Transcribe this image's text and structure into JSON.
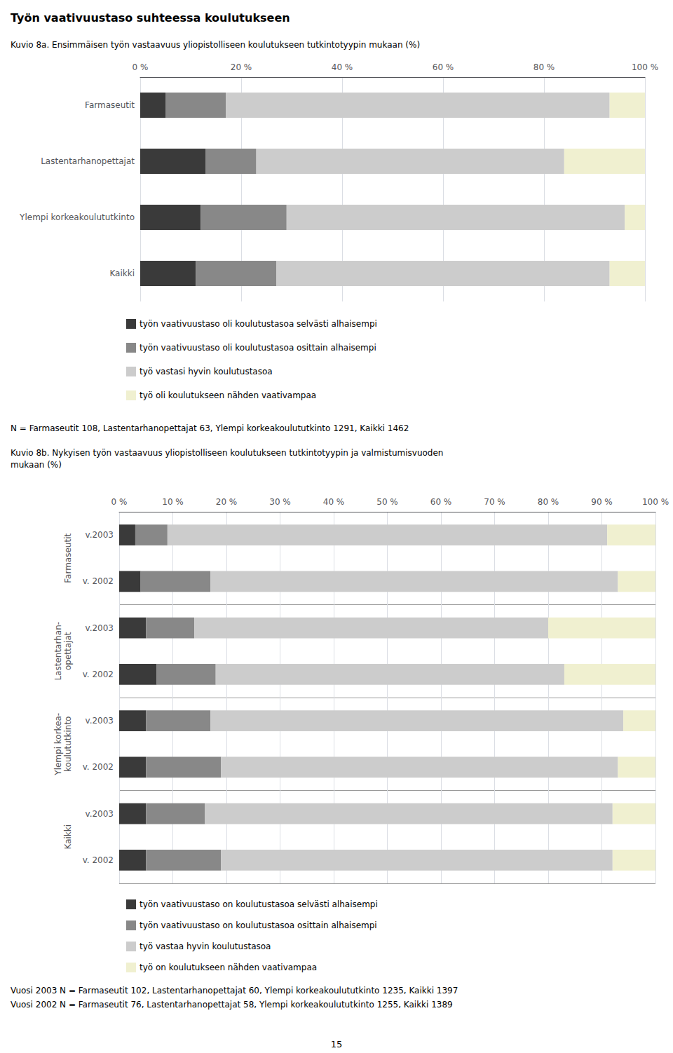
{
  "title": "Työn vaativuustaso suhteessa koulutukseen",
  "annotations": [
    "15"
  ],
  "chart_data": [
    {
      "type": "bar",
      "orientation": "horizontal",
      "stacked": true,
      "title": "Kuvio 8a. Ensimmäisen työn vastaavuus yliopistolliseen koulutukseen tutkintotyypin mukaan (%)",
      "categories": [
        "Farmaseutit",
        "Lastentarhanopettajat",
        "Ylempi korkeakoulututkinto",
        "Kaikki"
      ],
      "series": [
        {
          "name": "työn vaativuustaso oli koulutustasoa selvästi alhaisempi",
          "color": "#3a3a3a",
          "values": [
            5,
            13,
            12,
            11
          ]
        },
        {
          "name": "työn vaativuustaso oli koulutustasoa osittain alhaisempi",
          "color": "#888888",
          "values": [
            12,
            10,
            17,
            16
          ]
        },
        {
          "name": "työ vastasi hyvin koulutustasoa",
          "color": "#cccccc",
          "values": [
            76,
            61,
            67,
            66
          ]
        },
        {
          "name": "työ oli koulutukseen nähden vaativampaa",
          "color": "#f0f0d0",
          "values": [
            7,
            16,
            4,
            7
          ]
        }
      ],
      "xlim": [
        0,
        100
      ],
      "xticks": [
        {
          "value": 0,
          "label": "0 %"
        },
        {
          "value": 20,
          "label": "20 %"
        },
        {
          "value": 40,
          "label": "40 %"
        },
        {
          "value": 60,
          "label": "60 %"
        },
        {
          "value": 80,
          "label": "80 %"
        },
        {
          "value": 100,
          "label": "100 %"
        }
      ],
      "grid": true,
      "legend": "bottom",
      "annotations": [
        "N = Farmaseutit 108, Lastentarhanopettajat 63, Ylempi korkeakoulututkinto 1291, Kaikki 1462"
      ]
    },
    {
      "type": "bar",
      "orientation": "horizontal",
      "stacked": true,
      "title": "Kuvio 8b. Nykyisen työn vastaavuus yliopistolliseen koulutukseen tutkintotyypin ja valmistumisvuoden\nmukaan (%)",
      "categories": [
        "v.2003",
        "v. 2002",
        "v.2003",
        "v. 2002",
        "v.2003",
        "v. 2002",
        "v.2003",
        "v. 2002"
      ],
      "groups": [
        "Farmaseutit",
        "Lastentarhan-\nopettajat",
        "Ylempi korkea-\nkoulututkinto",
        "Kaikki"
      ],
      "series": [
        {
          "name": "työn vaativuustaso on koulutustasoa selvästi alhaisempi",
          "color": "#3a3a3a",
          "values": [
            3,
            4,
            5,
            7,
            5,
            5,
            5,
            5
          ]
        },
        {
          "name": "työn vaativuustaso on koulutustasoa osittain alhaisempi",
          "color": "#888888",
          "values": [
            6,
            13,
            9,
            11,
            12,
            14,
            11,
            14
          ]
        },
        {
          "name": "työ vastaa hyvin koulutustasoa",
          "color": "#cccccc",
          "values": [
            82,
            76,
            66,
            65,
            77,
            74,
            76,
            73
          ]
        },
        {
          "name": "työ on koulutukseen nähden vaativampaa",
          "color": "#f0f0d0",
          "values": [
            9,
            7,
            20,
            17,
            6,
            7,
            8,
            8
          ]
        }
      ],
      "xlim": [
        0,
        100
      ],
      "xticks": [
        {
          "value": 0,
          "label": "0 %"
        },
        {
          "value": 10,
          "label": "10 %"
        },
        {
          "value": 20,
          "label": "20 %"
        },
        {
          "value": 30,
          "label": "30 %"
        },
        {
          "value": 40,
          "label": "40 %"
        },
        {
          "value": 50,
          "label": "50 %"
        },
        {
          "value": 60,
          "label": "60 %"
        },
        {
          "value": 70,
          "label": "70 %"
        },
        {
          "value": 80,
          "label": "80 %"
        },
        {
          "value": 90,
          "label": "90 %"
        },
        {
          "value": 100,
          "label": "100 %"
        }
      ],
      "grid": true,
      "legend": "bottom",
      "annotations": [
        "Vuosi 2003 N = Farmaseutit 102, Lastentarhanopettajat 60, Ylempi korkeakoulututkinto 1235, Kaikki 1397",
        "Vuosi 2002 N = Farmaseutit 76, Lastentarhanopettajat 58, Ylempi korkeakoulututkinto 1255, Kaikki 1389"
      ]
    }
  ]
}
